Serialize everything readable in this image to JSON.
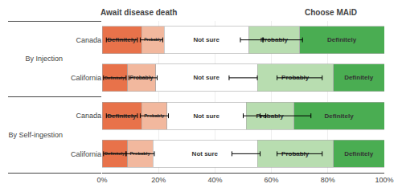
{
  "chart_data": {
    "type": "bar",
    "orientation": "horizontal",
    "stacked": true,
    "categories": [
      "Canada",
      "California",
      "Canada",
      "California"
    ],
    "groups": [
      "By Injection",
      "By Injection",
      "By Self-ingestion",
      "By Self-ingestion"
    ],
    "series": [
      {
        "name": "Definitely",
        "color": "#e8724a",
        "values": [
          14,
          9,
          14,
          9
        ]
      },
      {
        "name": "Probably",
        "color": "#f2b89e",
        "values": [
          8,
          10,
          9,
          9
        ]
      },
      {
        "name": "Not sure",
        "color": "#ffffff",
        "values": [
          30,
          36,
          28,
          37
        ]
      },
      {
        "name": "Probably",
        "color": "#b8ddb0",
        "values": [
          18,
          27,
          17,
          27
        ]
      },
      {
        "name": "Definitely",
        "color": "#4aad52",
        "values": [
          30,
          18,
          32,
          18
        ]
      }
    ],
    "error_bars": [
      [
        {
          "center": 7,
          "half_width": 5.5
        },
        {
          "center": 17.5,
          "half_width": 4
        },
        {
          "center": 53,
          "half_width": 4
        },
        {
          "center": 64,
          "half_width": 7
        }
      ],
      [
        {
          "center": 4.5,
          "half_width": 4
        },
        {
          "center": 14.5,
          "half_width": 5
        },
        {
          "center": 50,
          "half_width": 5
        },
        {
          "center": 70,
          "half_width": 8
        }
      ],
      [
        {
          "center": 7,
          "half_width": 5.5
        },
        {
          "center": 18.5,
          "half_width": 5
        },
        {
          "center": 54,
          "half_width": 4
        },
        {
          "center": 65,
          "half_width": 9
        }
      ],
      [
        {
          "center": 4.5,
          "half_width": 4
        },
        {
          "center": 13.5,
          "half_width": 5
        },
        {
          "center": 51,
          "half_width": 5
        },
        {
          "center": 70,
          "half_width": 8
        }
      ]
    ],
    "annotations": [
      "Await disease death",
      "Choose MAiD"
    ],
    "xlim": [
      0,
      100
    ],
    "xticks": [
      {
        "value": 0,
        "label": "0%"
      },
      {
        "value": 20,
        "label": "20%"
      },
      {
        "value": 40,
        "label": "40%"
      },
      {
        "value": 60,
        "label": "60%"
      },
      {
        "value": 80,
        "label": "80%"
      },
      {
        "value": 100,
        "label": "100%"
      }
    ],
    "grid": true
  }
}
